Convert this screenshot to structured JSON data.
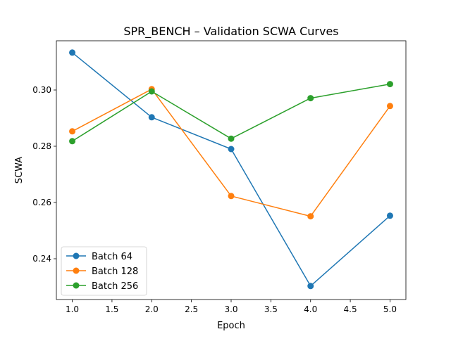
{
  "chart_data": {
    "type": "line",
    "title": "SPR_BENCH – Validation SCWA Curves",
    "xlabel": "Epoch",
    "ylabel": "SCWA",
    "x": [
      1,
      2,
      3,
      4,
      5
    ],
    "xlim": [
      0.8,
      5.2
    ],
    "ylim": [
      0.2255,
      0.3175
    ],
    "x_ticks": [
      "1.0",
      "1.5",
      "2.0",
      "2.5",
      "3.0",
      "3.5",
      "4.0",
      "4.5",
      "5.0"
    ],
    "y_ticks": [
      "0.24",
      "0.26",
      "0.28",
      "0.30"
    ],
    "grid": false,
    "legend_position": "lower-left",
    "series": [
      {
        "name": "Batch 64",
        "color": "#1f77b4",
        "values": [
          0.3133,
          0.2903,
          0.279,
          0.2303,
          0.2553
        ]
      },
      {
        "name": "Batch 128",
        "color": "#ff7f0e",
        "values": [
          0.2853,
          0.3003,
          0.2623,
          0.2551,
          0.2943
        ]
      },
      {
        "name": "Batch 256",
        "color": "#2ca02c",
        "values": [
          0.2818,
          0.2995,
          0.2827,
          0.2971,
          0.3021
        ]
      }
    ]
  }
}
